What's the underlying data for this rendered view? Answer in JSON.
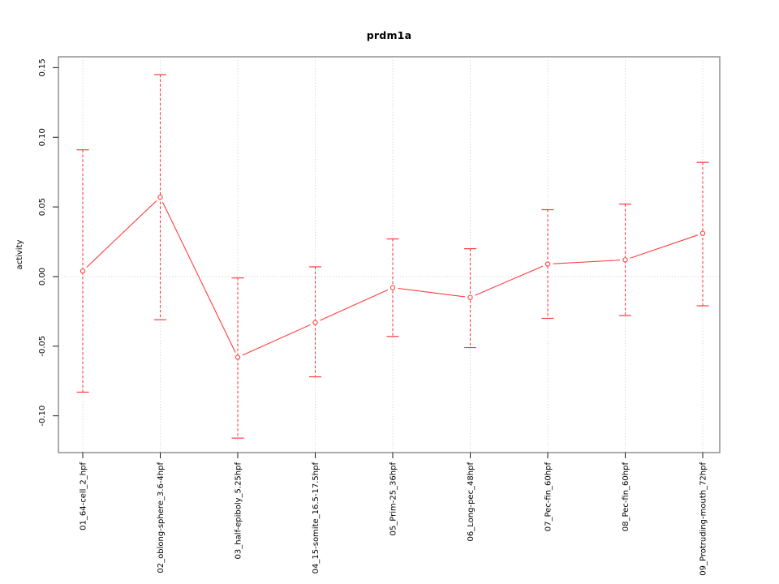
{
  "chart_data": {
    "type": "line",
    "title": "prdm1a",
    "xlabel": "",
    "ylabel": "activity",
    "legend": "none",
    "point_style": "open-circle",
    "error_bar_style": "dashed-with-caps",
    "categories": [
      "01_64-cell_2_hpf",
      "02_oblong-sphere_3.6-4hpf",
      "03_half-epiboly_5.25hpf",
      "04_15-somite_16.5-17.5hpf",
      "05_Prim-25_36hpf",
      "06_Long-pec_48hpf",
      "07_Pec-fin_60hpf",
      "08_Pec-fin_60hpf",
      "09_Protruding-mouth_72hpf"
    ],
    "series": [
      {
        "name": "activity",
        "values": [
          0.004,
          0.057,
          -0.058,
          -0.033,
          -0.008,
          -0.015,
          0.009,
          0.012,
          0.031
        ],
        "error_upper": [
          0.091,
          0.145,
          -0.001,
          0.007,
          0.027,
          0.02,
          0.048,
          0.052,
          0.082
        ],
        "error_lower": [
          -0.083,
          -0.031,
          -0.116,
          -0.072,
          -0.043,
          -0.051,
          -0.03,
          -0.028,
          -0.021
        ]
      }
    ],
    "yticks": [
      -0.1,
      -0.05,
      0.0,
      0.05,
      0.1,
      0.15
    ],
    "ytick_labels": [
      "-0.10",
      "-0.05",
      "0.00",
      "0.05",
      "0.10",
      "0.15"
    ],
    "ylim": [
      -0.1264,
      0.1578
    ],
    "grid": {
      "vertical_at_categories": true,
      "horizontal_at_zero": true,
      "style": "dotted"
    },
    "colors": {
      "series": "#ff3d3d",
      "grid": "#cccccc",
      "box": "#898989",
      "tick": "#1a1a1a",
      "text": "#000000",
      "background": "#ffffff"
    }
  }
}
